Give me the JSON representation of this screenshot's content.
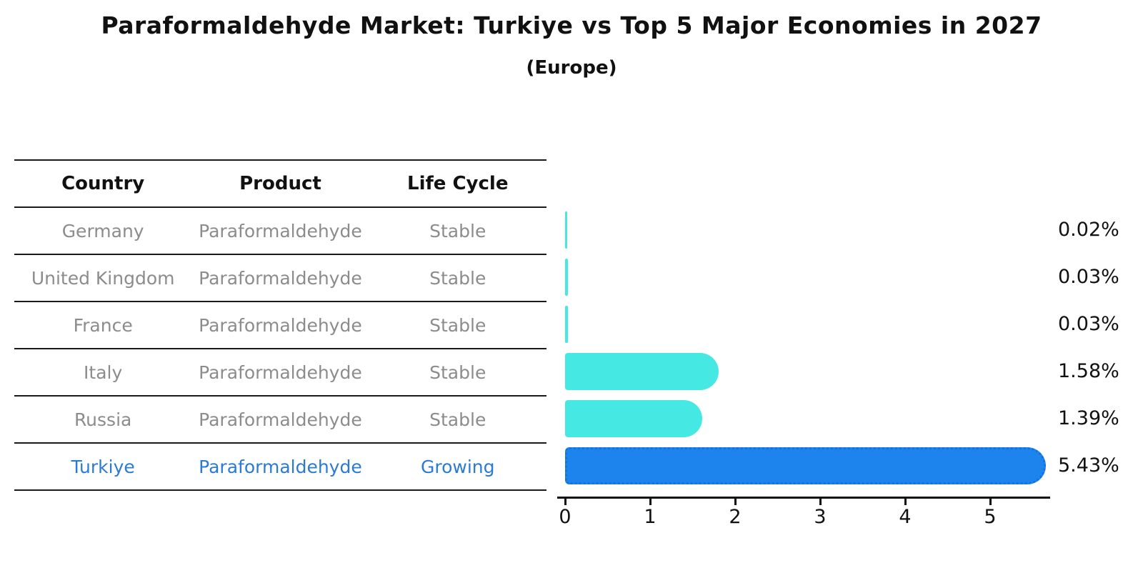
{
  "title": "Paraformaldehyde Market: Turkiye vs Top 5 Major Economies in 2027",
  "subtitle": "(Europe)",
  "table": {
    "headers": [
      "Country",
      "Product",
      "Life Cycle"
    ],
    "rows": [
      {
        "country": "Germany",
        "product": "Paraformaldehyde",
        "life_cycle": "Stable",
        "highlight": false
      },
      {
        "country": "United Kingdom",
        "product": "Paraformaldehyde",
        "life_cycle": "Stable",
        "highlight": false
      },
      {
        "country": "France",
        "product": "Paraformaldehyde",
        "life_cycle": "Stable",
        "highlight": false
      },
      {
        "country": "Italy",
        "product": "Paraformaldehyde",
        "life_cycle": "Stable",
        "highlight": false
      },
      {
        "country": "Russia",
        "product": "Paraformaldehyde",
        "life_cycle": "Stable",
        "highlight": false
      },
      {
        "country": "Turkiye",
        "product": "Paraformaldehyde",
        "life_cycle": "Growing",
        "highlight": true
      }
    ]
  },
  "chart_data": {
    "type": "bar",
    "orientation": "horizontal",
    "categories": [
      "Germany",
      "United Kingdom",
      "France",
      "Italy",
      "Russia",
      "Turkiye"
    ],
    "values": [
      0.02,
      0.03,
      0.03,
      1.58,
      1.39,
      5.43
    ],
    "value_labels": [
      "0.02%",
      "0.03%",
      "0.03%",
      "1.58%",
      "1.39%",
      "5.43%"
    ],
    "series_styles": [
      "stable",
      "stable",
      "stable",
      "stable",
      "stable",
      "growing"
    ],
    "x_ticks": [
      0,
      1,
      2,
      3,
      4,
      5
    ],
    "xlim": [
      0,
      5.8
    ],
    "xlabel": "",
    "ylabel": "",
    "grid": false,
    "legend": "none",
    "title": "Paraformaldehyde Market: Turkiye vs Top 5 Major Economies in 2027 (Europe)"
  },
  "colors": {
    "stable_bar": "#45e8e2",
    "growing_bar": "#1d84ee",
    "growing_bar_edge": "#1371e0",
    "highlight_text": "#2b7bd4",
    "row_text": "#8c8c8c",
    "header_text": "#111111",
    "axis": "#111111"
  }
}
